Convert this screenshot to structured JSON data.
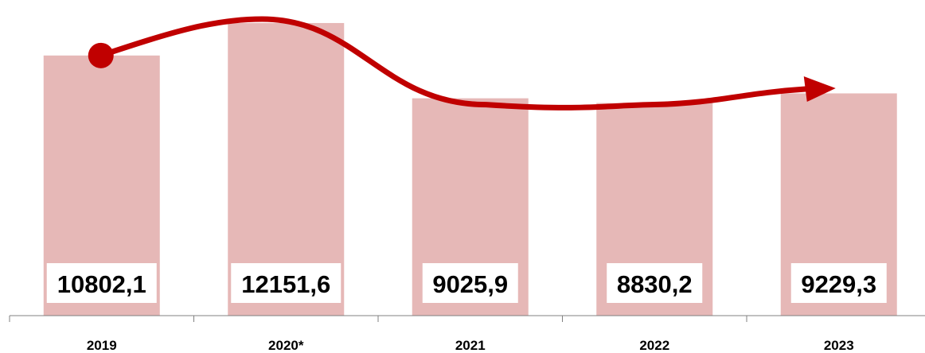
{
  "chart_data": {
    "type": "bar",
    "title": "",
    "xlabel": "",
    "ylabel": "",
    "categories": [
      "2019",
      "2020*",
      "2021",
      "2022",
      "2023"
    ],
    "values": [
      10802.1,
      12151.6,
      9025.9,
      8830.2,
      9229.3
    ],
    "value_labels": [
      "10802,1",
      "12151,6",
      "9025,9",
      "8830,2",
      "9229,3"
    ],
    "ylim": [
      0,
      12500
    ],
    "grid": false,
    "legend": "none",
    "overlay": "curved trend arrow from 2019 to 2023",
    "colors": {
      "bar": "#e6b8b7",
      "trend_arrow": "#c00000",
      "label_box": "#ffffff",
      "axis": "#808080"
    }
  }
}
